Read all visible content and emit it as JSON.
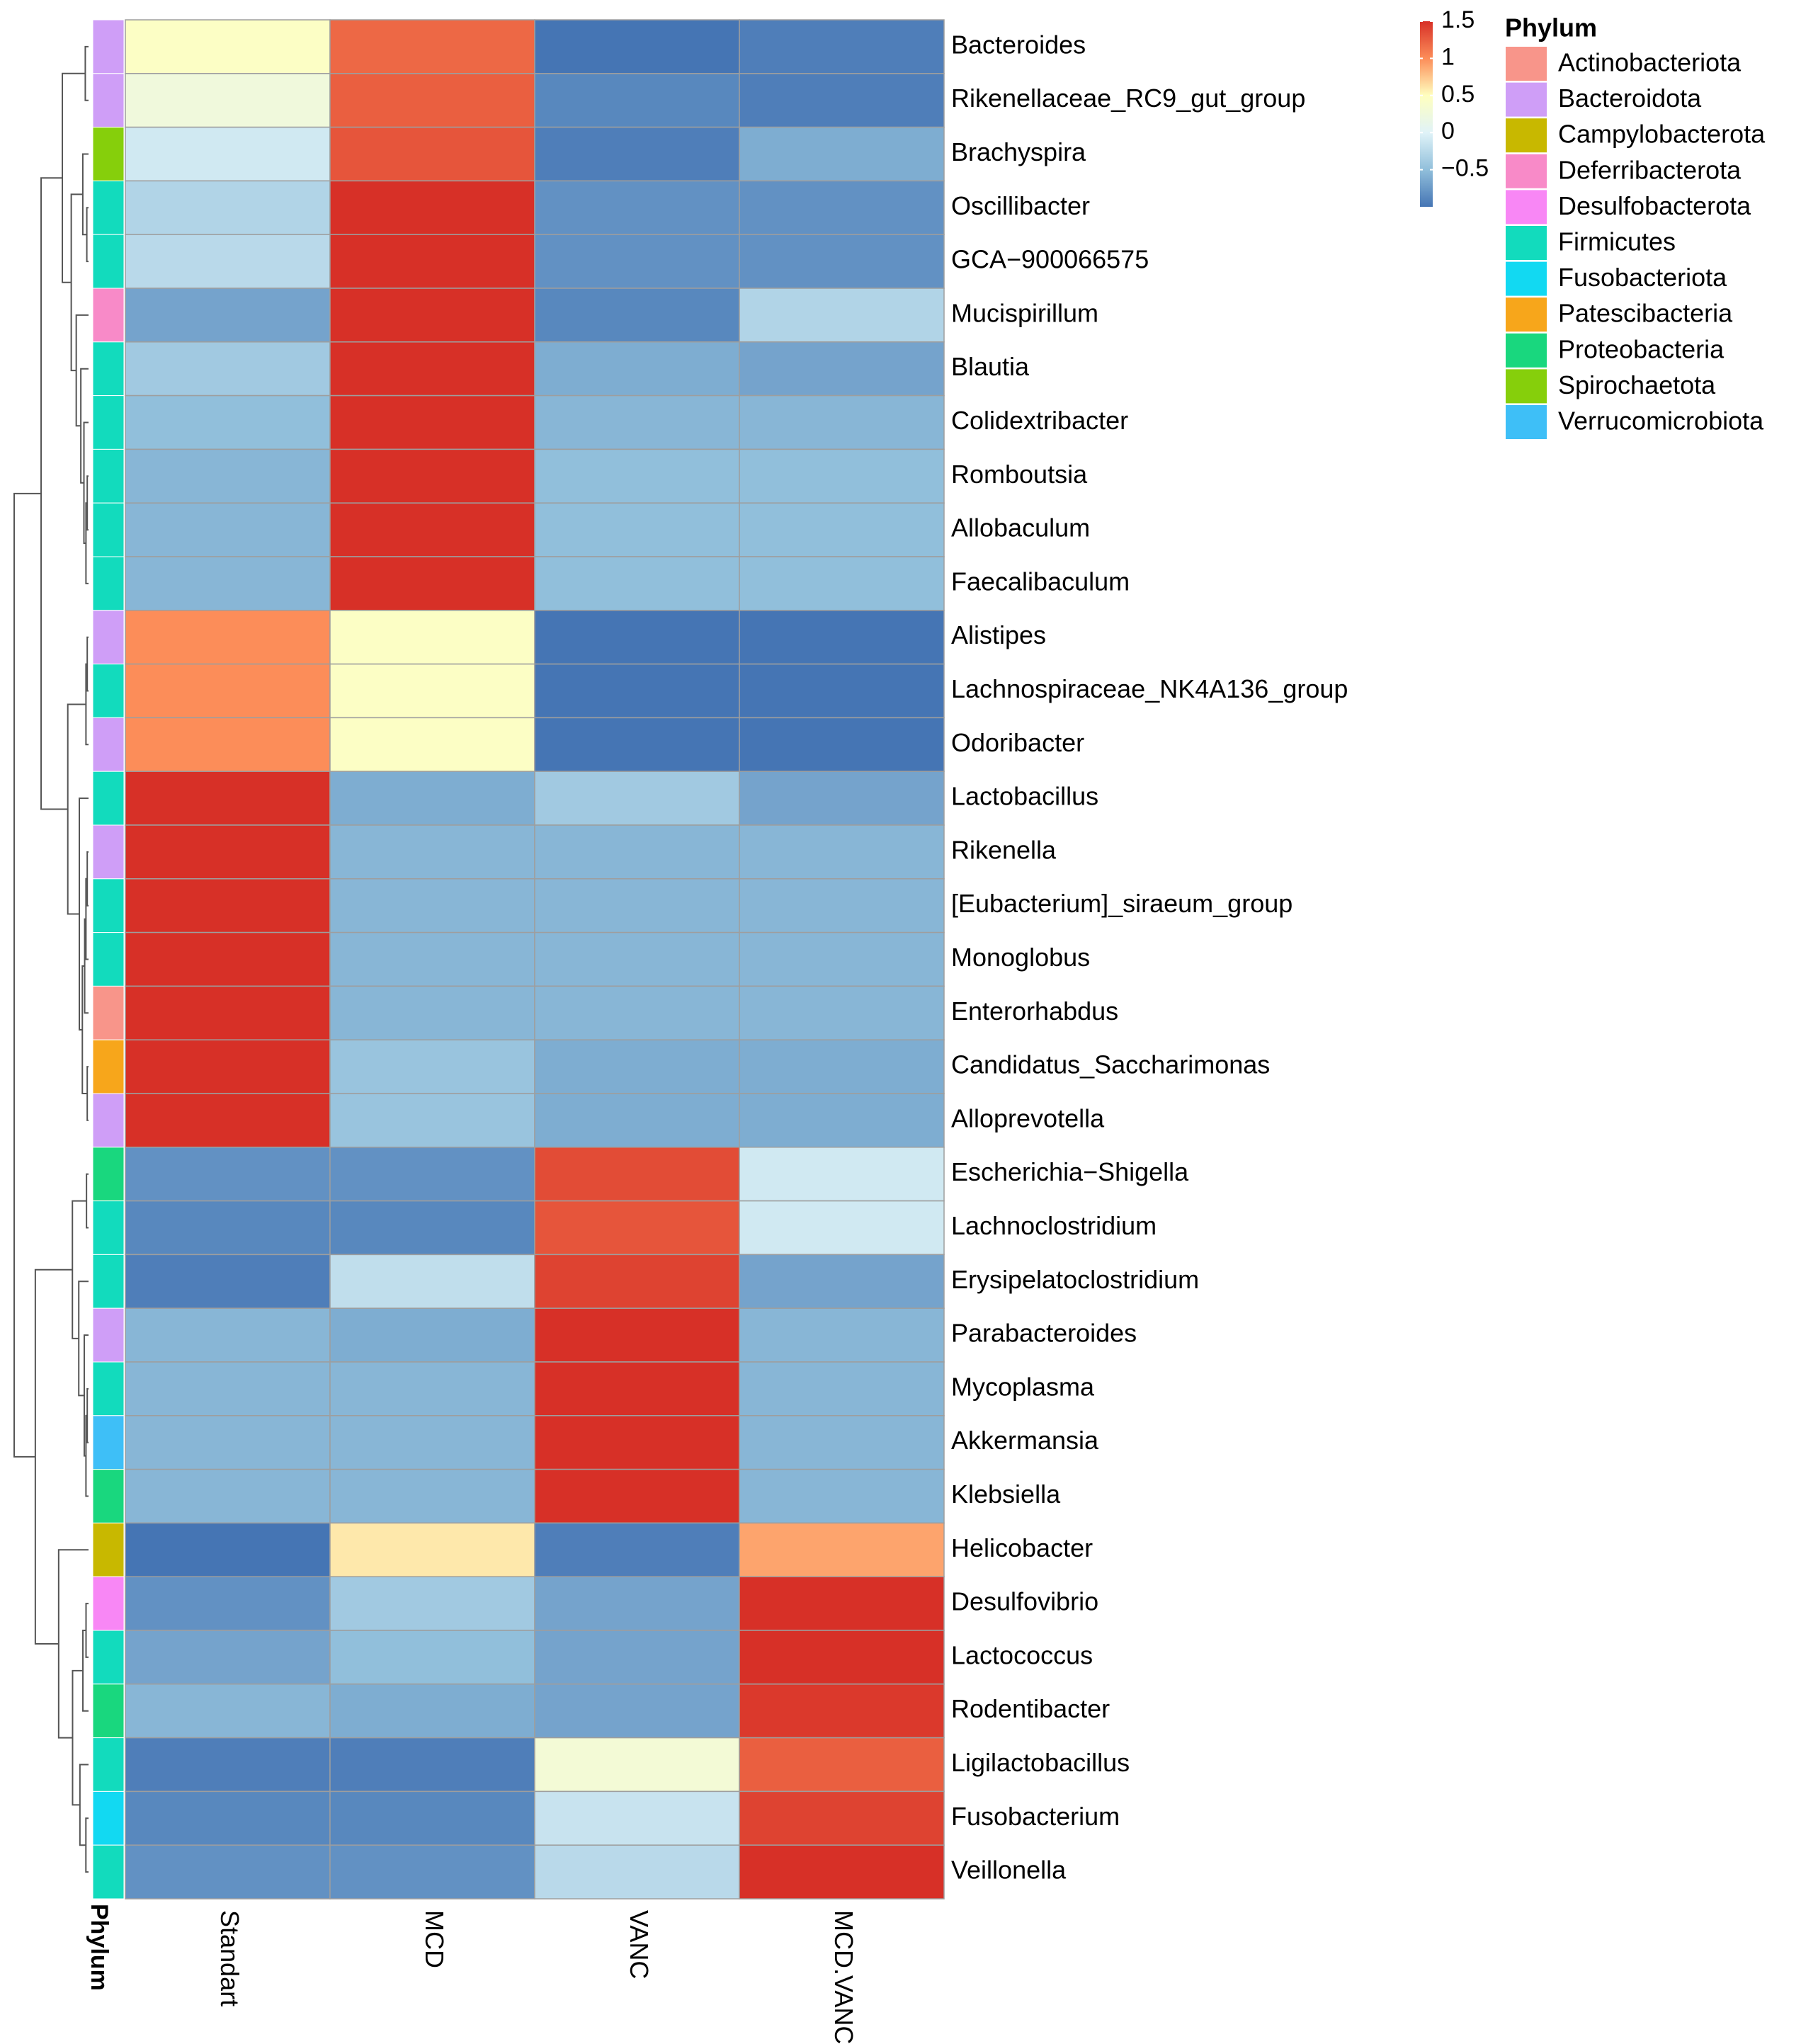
{
  "chart_data": {
    "type": "heatmap",
    "title": "",
    "columns": [
      "Standart",
      "MCD",
      "VANC",
      "MCD.VANC"
    ],
    "rows": [
      {
        "label": "Bacteroides",
        "phylum": "Bacteroidota",
        "values": [
          0.45,
          1.2,
          -0.9,
          -0.85
        ]
      },
      {
        "label": "Rikenellaceae_RC9_gut_group",
        "phylum": "Bacteroidota",
        "values": [
          0.25,
          1.25,
          -0.8,
          -0.85
        ]
      },
      {
        "label": "Brachyspira",
        "phylum": "Spirochaetota",
        "values": [
          -0.1,
          1.3,
          -0.85,
          -0.6
        ]
      },
      {
        "label": "Oscillibacter",
        "phylum": "Firmicutes",
        "values": [
          -0.3,
          1.5,
          -0.75,
          -0.75
        ]
      },
      {
        "label": "GCA−900066575",
        "phylum": "Firmicutes",
        "values": [
          -0.25,
          1.5,
          -0.75,
          -0.75
        ]
      },
      {
        "label": "Mucispirillum",
        "phylum": "Deferribacterota",
        "values": [
          -0.65,
          1.5,
          -0.8,
          -0.3
        ]
      },
      {
        "label": "Blautia",
        "phylum": "Firmicutes",
        "values": [
          -0.4,
          1.5,
          -0.6,
          -0.65
        ]
      },
      {
        "label": "Colidextribacter",
        "phylum": "Firmicutes",
        "values": [
          -0.5,
          1.5,
          -0.55,
          -0.55
        ]
      },
      {
        "label": "Romboutsia",
        "phylum": "Firmicutes",
        "values": [
          -0.55,
          1.5,
          -0.5,
          -0.5
        ]
      },
      {
        "label": "Allobaculum",
        "phylum": "Firmicutes",
        "values": [
          -0.55,
          1.5,
          -0.5,
          -0.5
        ]
      },
      {
        "label": "Faecalibaculum",
        "phylum": "Firmicutes",
        "values": [
          -0.55,
          1.5,
          -0.5,
          -0.5
        ]
      },
      {
        "label": "Alistipes",
        "phylum": "Bacteroidota",
        "values": [
          1.0,
          0.45,
          -0.9,
          -0.9
        ]
      },
      {
        "label": "Lachnospiraceae_NK4A136_group",
        "phylum": "Firmicutes",
        "values": [
          1.0,
          0.45,
          -0.9,
          -0.9
        ]
      },
      {
        "label": "Odoribacter",
        "phylum": "Bacteroidota",
        "values": [
          1.0,
          0.45,
          -0.9,
          -0.9
        ]
      },
      {
        "label": "Lactobacillus",
        "phylum": "Firmicutes",
        "values": [
          1.5,
          -0.6,
          -0.4,
          -0.65
        ]
      },
      {
        "label": "Rikenella",
        "phylum": "Bacteroidota",
        "values": [
          1.5,
          -0.55,
          -0.55,
          -0.55
        ]
      },
      {
        "label": "[Eubacterium]_siraeum_group",
        "phylum": "Firmicutes",
        "values": [
          1.5,
          -0.55,
          -0.55,
          -0.55
        ]
      },
      {
        "label": "Monoglobus",
        "phylum": "Firmicutes",
        "values": [
          1.5,
          -0.55,
          -0.55,
          -0.55
        ]
      },
      {
        "label": "Enterorhabdus",
        "phylum": "Actinobacteriota",
        "values": [
          1.5,
          -0.55,
          -0.55,
          -0.55
        ]
      },
      {
        "label": "Candidatus_Saccharimonas",
        "phylum": "Patescibacteria",
        "values": [
          1.5,
          -0.45,
          -0.6,
          -0.6
        ]
      },
      {
        "label": "Alloprevotella",
        "phylum": "Bacteroidota",
        "values": [
          1.5,
          -0.45,
          -0.6,
          -0.6
        ]
      },
      {
        "label": "Escherichia−Shigella",
        "phylum": "Proteobacteria",
        "values": [
          -0.75,
          -0.75,
          1.35,
          -0.1
        ]
      },
      {
        "label": "Lachnoclostridium",
        "phylum": "Firmicutes",
        "values": [
          -0.8,
          -0.8,
          1.3,
          -0.1
        ]
      },
      {
        "label": "Erysipelatoclostridium",
        "phylum": "Firmicutes",
        "values": [
          -0.85,
          -0.2,
          1.4,
          -0.65
        ]
      },
      {
        "label": "Parabacteroides",
        "phylum": "Bacteroidota",
        "values": [
          -0.55,
          -0.6,
          1.5,
          -0.55
        ]
      },
      {
        "label": "Mycoplasma",
        "phylum": "Firmicutes",
        "values": [
          -0.55,
          -0.55,
          1.5,
          -0.55
        ]
      },
      {
        "label": "Akkermansia",
        "phylum": "Verrucomicrobiota",
        "values": [
          -0.55,
          -0.55,
          1.5,
          -0.55
        ]
      },
      {
        "label": "Klebsiella",
        "phylum": "Proteobacteria",
        "values": [
          -0.55,
          -0.55,
          1.5,
          -0.55
        ]
      },
      {
        "label": "Helicobacter",
        "phylum": "Campylobacterota",
        "values": [
          -1.0,
          0.6,
          -0.85,
          0.9
        ]
      },
      {
        "label": "Desulfovibrio",
        "phylum": "Desulfobacterota",
        "values": [
          -0.75,
          -0.4,
          -0.65,
          1.5
        ]
      },
      {
        "label": "Lactococcus",
        "phylum": "Firmicutes",
        "values": [
          -0.65,
          -0.5,
          -0.65,
          1.5
        ]
      },
      {
        "label": "Rodentibacter",
        "phylum": "Proteobacteria",
        "values": [
          -0.55,
          -0.6,
          -0.65,
          1.45
        ]
      },
      {
        "label": "Ligilactobacillus",
        "phylum": "Firmicutes",
        "values": [
          -0.85,
          -0.85,
          0.3,
          1.25
        ]
      },
      {
        "label": "Fusobacterium",
        "phylum": "Fusobacteriota",
        "values": [
          -0.8,
          -0.8,
          -0.15,
          1.4
        ]
      },
      {
        "label": "Veillonella",
        "phylum": "Firmicutes",
        "values": [
          -0.75,
          -0.75,
          -0.25,
          1.5
        ]
      }
    ],
    "color_scale": {
      "stops": [
        {
          "value": -0.9,
          "color": "#4575b4"
        },
        {
          "value": -0.5,
          "color": "#91bfdb"
        },
        {
          "value": 0.0,
          "color": "#e0f3f8"
        },
        {
          "value": 0.5,
          "color": "#ffffbf"
        },
        {
          "value": 1.0,
          "color": "#fc8d59"
        },
        {
          "value": 1.5,
          "color": "#d73027"
        }
      ],
      "ticks": [
        {
          "value": 1.5,
          "label": "1.5"
        },
        {
          "value": 1.0,
          "label": "1"
        },
        {
          "value": 0.5,
          "label": "0.5"
        },
        {
          "value": 0.0,
          "label": "0"
        },
        {
          "value": -0.5,
          "label": "−0.5"
        }
      ],
      "range": [
        -1.0,
        1.5
      ]
    },
    "annotation": {
      "label": "Phylum",
      "legend_title": "Phylum",
      "categories": [
        {
          "name": "Actinobacteriota",
          "color": "#f8958a"
        },
        {
          "name": "Bacteroidota",
          "color": "#cf9ef7"
        },
        {
          "name": "Campylobacterota",
          "color": "#c8b800"
        },
        {
          "name": "Deferribacterota",
          "color": "#f88ac8"
        },
        {
          "name": "Desulfobacterota",
          "color": "#f887f5"
        },
        {
          "name": "Firmicutes",
          "color": "#12dbbd"
        },
        {
          "name": "Fusobacteriota",
          "color": "#12d9f2"
        },
        {
          "name": "Patescibacteria",
          "color": "#f7a61b"
        },
        {
          "name": "Proteobacteria",
          "color": "#19d77e"
        },
        {
          "name": "Spirochaetota",
          "color": "#86cf0b"
        },
        {
          "name": "Verrucomicrobiota",
          "color": "#3ebff7"
        }
      ]
    },
    "row_dendrogram": true
  }
}
